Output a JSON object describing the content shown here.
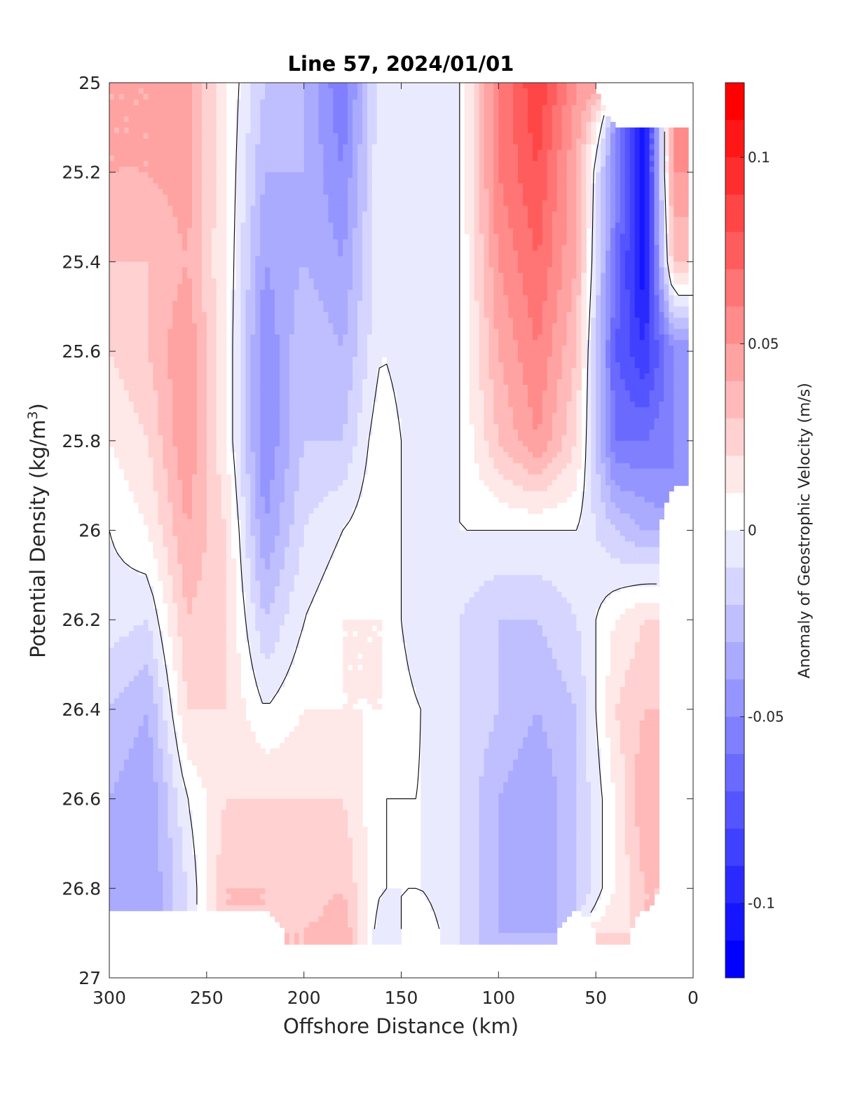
{
  "chart_data": {
    "type": "heatmap",
    "subtype": "filled-contour",
    "title": "Line 57, 2024/01/01",
    "xlabel": "Offshore Distance (km)",
    "ylabel_main": "Potential Density (kg/m",
    "ylabel_sup": "3",
    "ylabel_close": ")",
    "xlim": [
      300,
      0
    ],
    "x_reversed": true,
    "ylim": [
      25,
      27
    ],
    "y_reversed": true,
    "xticks": [
      300,
      250,
      200,
      150,
      100,
      50,
      0
    ],
    "yticks": [
      25,
      25.2,
      25.4,
      25.6,
      25.8,
      26,
      26.2,
      26.4,
      26.6,
      26.8,
      27
    ],
    "xtick_labels": [
      "300",
      "250",
      "200",
      "150",
      "100",
      "50",
      "0"
    ],
    "ytick_labels": [
      "25",
      "25.2",
      "25.4",
      "25.6",
      "25.8",
      "26",
      "26.2",
      "26.4",
      "26.6",
      "26.8",
      "27"
    ],
    "colorbar": {
      "label": "Anomaly of Geostrophic Velocity (m/s)",
      "clim": [
        -0.12,
        0.12
      ],
      "step": 0.01,
      "ticks": [
        -0.1,
        -0.05,
        0,
        0.05,
        0.1
      ],
      "tick_labels": [
        "-0.1",
        "-0.05",
        "0",
        "0.05",
        "0.1"
      ],
      "colormap": "blue-white-red",
      "neg_color": "#0000ff",
      "pos_color": "#ff0000",
      "zero_color": "#ffffff"
    },
    "contour_line_color": "#000000",
    "contour_line_level": 0,
    "x": [
      300,
      280,
      260,
      240,
      220,
      200,
      180,
      160,
      140,
      120,
      100,
      80,
      60,
      40,
      25,
      10
    ],
    "y": [
      25.0,
      25.2,
      25.4,
      25.6,
      25.8,
      26.0,
      26.2,
      26.4,
      26.6,
      26.8,
      26.9
    ],
    "values": [
      [
        0.04,
        0.04,
        0.045,
        0.01,
        -0.02,
        -0.03,
        -0.06,
        0.0,
        -0.01,
        0.0,
        0.06,
        0.09,
        0.05,
        null,
        null,
        null
      ],
      [
        0.04,
        0.04,
        0.045,
        0.01,
        -0.03,
        -0.03,
        -0.05,
        0.0,
        -0.01,
        0.0,
        0.06,
        0.08,
        0.04,
        -0.05,
        -0.11,
        0.05
      ],
      [
        0.03,
        0.03,
        0.04,
        0.01,
        -0.04,
        -0.03,
        -0.04,
        0.0,
        -0.01,
        0.0,
        0.05,
        0.07,
        0.04,
        -0.06,
        -0.11,
        0.03
      ],
      [
        0.02,
        0.03,
        0.05,
        0.01,
        -0.05,
        -0.02,
        -0.03,
        0.0,
        -0.01,
        0.0,
        0.04,
        0.06,
        0.03,
        -0.07,
        -0.09,
        -0.05
      ],
      [
        0.01,
        0.02,
        0.05,
        0.01,
        -0.05,
        -0.02,
        -0.02,
        0.01,
        -0.01,
        0.0,
        0.03,
        0.05,
        0.02,
        -0.06,
        -0.06,
        -0.05
      ],
      [
        0.0,
        0.01,
        0.04,
        0.02,
        -0.04,
        -0.01,
        0.0,
        0.01,
        -0.01,
        0.0,
        0.0,
        0.0,
        0.0,
        -0.02,
        -0.03,
        null
      ],
      [
        -0.005,
        -0.01,
        0.03,
        0.02,
        -0.02,
        0.0,
        0.01,
        0.01,
        -0.01,
        -0.01,
        -0.02,
        -0.02,
        -0.01,
        0.01,
        0.02,
        null
      ],
      [
        -0.02,
        -0.03,
        0.02,
        0.02,
        0.0,
        0.01,
        0.01,
        0.01,
        0.0,
        -0.01,
        -0.02,
        -0.03,
        -0.02,
        0.02,
        0.03,
        null
      ],
      [
        -0.03,
        -0.04,
        0.0,
        0.02,
        0.02,
        0.02,
        0.02,
        0.0,
        0.0,
        -0.01,
        -0.03,
        -0.04,
        -0.02,
        0.01,
        0.04,
        null
      ],
      [
        -0.03,
        -0.04,
        -0.01,
        0.03,
        0.03,
        0.02,
        0.03,
        0.0,
        0.0,
        -0.01,
        -0.03,
        -0.04,
        -0.02,
        0.01,
        0.03,
        null
      ],
      [
        null,
        null,
        null,
        null,
        null,
        0.03,
        0.04,
        -0.01,
        0.01,
        -0.01,
        -0.03,
        -0.03,
        null,
        0.02,
        null,
        null
      ]
    ]
  }
}
